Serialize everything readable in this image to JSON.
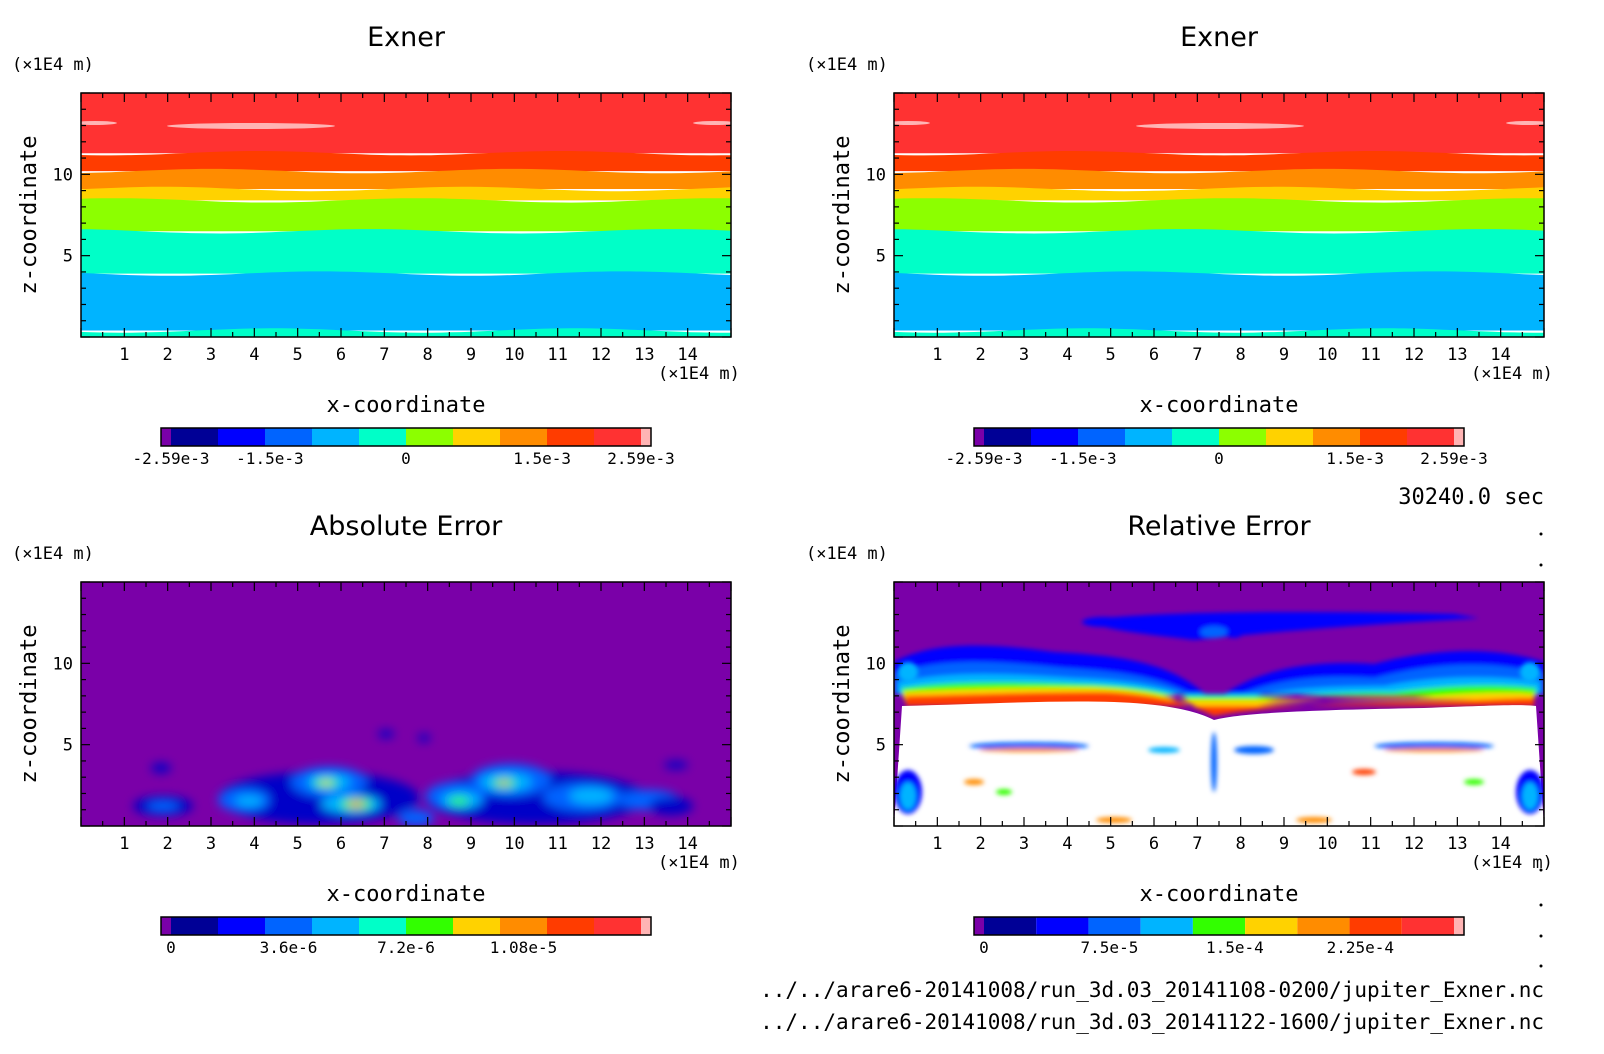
{
  "figure": {
    "time_label": "30240.0 sec",
    "file_paths": [
      "../../arare6-20141008/run_3d.03_20141108-0200/jupiter_Exner.nc",
      "../../arare6-20141008/run_3d.03_20141122-1600/jupiter_Exner.nc"
    ]
  },
  "chart_data": [
    {
      "type": "heatmap",
      "title": "Exner",
      "xlabel": "x-coordinate",
      "ylabel": "z-coordinate",
      "x_unit": "(×1E4 m)",
      "y_unit": "(×1E4 m)",
      "xlim": [
        0,
        15
      ],
      "ylim": [
        0,
        15
      ],
      "x_ticks": [
        1,
        2,
        3,
        4,
        5,
        6,
        7,
        8,
        9,
        10,
        11,
        12,
        13,
        14
      ],
      "y_ticks": [
        5,
        10
      ],
      "field": "horizontal bands decreasing upward",
      "colorbar": {
        "colors": [
          "#7a00a8",
          "#000096",
          "#0000ff",
          "#0064ff",
          "#00b4ff",
          "#00ffc8",
          "#8cff00",
          "#ffd200",
          "#ff8c00",
          "#ff3c00",
          "#ff3232",
          "#ffb4b4"
        ],
        "tick_labels": [
          "-2.59e-3",
          "-1.5e-3",
          "0",
          "1.5e-3",
          "2.59e-3"
        ],
        "tick_values": [
          -0.00259,
          -0.0015,
          0,
          0.0015,
          0.00259
        ],
        "range": [
          -0.00259,
          0.00259
        ]
      },
      "bands": [
        {
          "z_top": 15.0,
          "z_bottom": 11.3,
          "color": "#ff3232"
        },
        {
          "z_top": 11.3,
          "z_bottom": 10.2,
          "color": "#ff3c00"
        },
        {
          "z_top": 10.2,
          "z_bottom": 9.1,
          "color": "#ff8c00"
        },
        {
          "z_top": 9.1,
          "z_bottom": 8.4,
          "color": "#ffd200"
        },
        {
          "z_top": 8.4,
          "z_bottom": 6.5,
          "color": "#8cff00"
        },
        {
          "z_top": 6.5,
          "z_bottom": 3.9,
          "color": "#00ffc8"
        },
        {
          "z_top": 3.9,
          "z_bottom": 0.4,
          "color": "#00b4ff"
        },
        {
          "z_top": 0.4,
          "z_bottom": 0.0,
          "color": "#00ffc8"
        }
      ]
    },
    {
      "type": "heatmap",
      "title": "Exner",
      "xlabel": "x-coordinate",
      "ylabel": "z-coordinate",
      "x_unit": "(×1E4 m)",
      "y_unit": "(×1E4 m)",
      "xlim": [
        0,
        15
      ],
      "ylim": [
        0,
        15
      ],
      "x_ticks": [
        1,
        2,
        3,
        4,
        5,
        6,
        7,
        8,
        9,
        10,
        11,
        12,
        13,
        14
      ],
      "y_ticks": [
        5,
        10
      ],
      "field": "horizontal bands decreasing upward",
      "colorbar": {
        "colors": [
          "#7a00a8",
          "#000096",
          "#0000ff",
          "#0064ff",
          "#00b4ff",
          "#00ffc8",
          "#8cff00",
          "#ffd200",
          "#ff8c00",
          "#ff3c00",
          "#ff3232",
          "#ffb4b4"
        ],
        "tick_labels": [
          "-2.59e-3",
          "-1.5e-3",
          "0",
          "1.5e-3",
          "2.59e-3"
        ],
        "tick_values": [
          -0.00259,
          -0.0015,
          0,
          0.0015,
          0.00259
        ],
        "range": [
          -0.00259,
          0.00259
        ]
      },
      "bands": [
        {
          "z_top": 15.0,
          "z_bottom": 11.3,
          "color": "#ff3232"
        },
        {
          "z_top": 11.3,
          "z_bottom": 10.2,
          "color": "#ff3c00"
        },
        {
          "z_top": 10.2,
          "z_bottom": 9.1,
          "color": "#ff8c00"
        },
        {
          "z_top": 9.1,
          "z_bottom": 8.4,
          "color": "#ffd200"
        },
        {
          "z_top": 8.4,
          "z_bottom": 6.5,
          "color": "#8cff00"
        },
        {
          "z_top": 6.5,
          "z_bottom": 3.9,
          "color": "#00ffc8"
        },
        {
          "z_top": 3.9,
          "z_bottom": 0.4,
          "color": "#00b4ff"
        },
        {
          "z_top": 0.4,
          "z_bottom": 0.0,
          "color": "#00ffc8"
        }
      ]
    },
    {
      "type": "heatmap",
      "title": "Absolute Error",
      "xlabel": "x-coordinate",
      "ylabel": "z-coordinate",
      "x_unit": "(×1E4 m)",
      "y_unit": "(×1E4 m)",
      "xlim": [
        0,
        15
      ],
      "ylim": [
        0,
        15
      ],
      "x_ticks": [
        1,
        2,
        3,
        4,
        5,
        6,
        7,
        8,
        9,
        10,
        11,
        12,
        13,
        14
      ],
      "y_ticks": [
        5,
        10
      ],
      "field": "near zero everywhere, small blobs below z=3",
      "colorbar": {
        "colors": [
          "#7a00a8",
          "#000096",
          "#0000ff",
          "#0064ff",
          "#00b4ff",
          "#00ffc8",
          "#32ff00",
          "#ffd200",
          "#ff8c00",
          "#ff3c00",
          "#ff3232",
          "#ffb4b4"
        ],
        "tick_labels": [
          "0",
          "3.6e-6",
          "7.2e-6",
          "1.08e-5"
        ],
        "tick_values": [
          0,
          3.6e-06,
          7.2e-06,
          1.08e-05
        ],
        "range": [
          0,
          1.44e-05
        ]
      }
    },
    {
      "type": "heatmap",
      "title": "Relative Error",
      "xlabel": "x-coordinate",
      "ylabel": "z-coordinate",
      "x_unit": "(×1E4 m)",
      "y_unit": "(×1E4 m)",
      "xlim": [
        0,
        15
      ],
      "ylim": [
        0,
        15
      ],
      "x_ticks": [
        1,
        2,
        3,
        4,
        5,
        6,
        7,
        8,
        9,
        10,
        11,
        12,
        13,
        14
      ],
      "y_ticks": [
        5,
        10
      ],
      "field": "low above z=11, saturated (white) below z=8",
      "colorbar": {
        "colors": [
          "#7a00a8",
          "#000096",
          "#0000ff",
          "#0064ff",
          "#00b4ff",
          "#32ff00",
          "#ffd200",
          "#ff8c00",
          "#ff3c00",
          "#ff3232",
          "#ffb4b4"
        ],
        "tick_labels": [
          "0",
          "7.5e-5",
          "1.5e-4",
          "2.25e-4"
        ],
        "tick_values": [
          0,
          7.5e-05,
          0.00015,
          0.000225
        ],
        "range": [
          0,
          0.000281
        ]
      }
    }
  ]
}
